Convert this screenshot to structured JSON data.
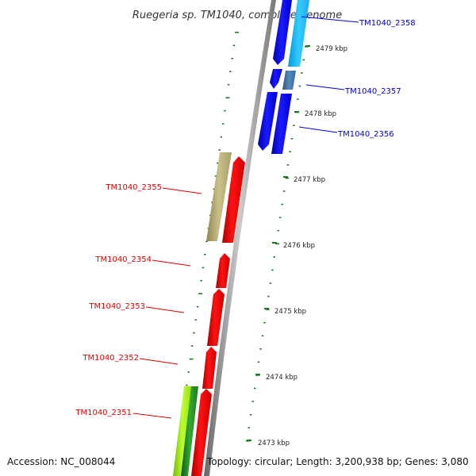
{
  "title": "Ruegeria sp. TM1040, complete genome",
  "footer": {
    "accession": "Accession: NC_008044",
    "topology": "Topology: circular; Length: 3,200,938 bp; Genes: 3,080"
  },
  "scale": {
    "unit": "kbp",
    "ticks": [
      "2473 kbp",
      "2474 kbp",
      "2475 kbp",
      "2476 kbp",
      "2477 kbp",
      "2478 kbp",
      "2479 kbp"
    ]
  },
  "genes": [
    {
      "name": "TM1040_2358",
      "color": "#0000cc",
      "strand": "reverse"
    },
    {
      "name": "TM1040_2357",
      "color": "#0000cc",
      "strand": "reverse"
    },
    {
      "name": "TM1040_2356",
      "color": "#0000cc",
      "strand": "reverse"
    },
    {
      "name": "TM1040_2355",
      "color": "#dd0000",
      "strand": "forward"
    },
    {
      "name": "TM1040_2354",
      "color": "#dd0000",
      "strand": "forward"
    },
    {
      "name": "TM1040_2353",
      "color": "#dd0000",
      "strand": "forward"
    },
    {
      "name": "TM1040_2352",
      "color": "#dd0000",
      "strand": "forward"
    },
    {
      "name": "TM1040_2351",
      "color": "#dd0000",
      "strand": "forward"
    }
  ],
  "colors": {
    "forward_strand": "#ff0000",
    "reverse_strand": "#0000ee",
    "backbone": "#888888",
    "tick_marks": "#227722",
    "cog_light_blue": "#22ccff",
    "cog_steel_blue": "#4477aa",
    "cog_khaki": "#b8b070",
    "cog_lime": "#aaee22"
  }
}
